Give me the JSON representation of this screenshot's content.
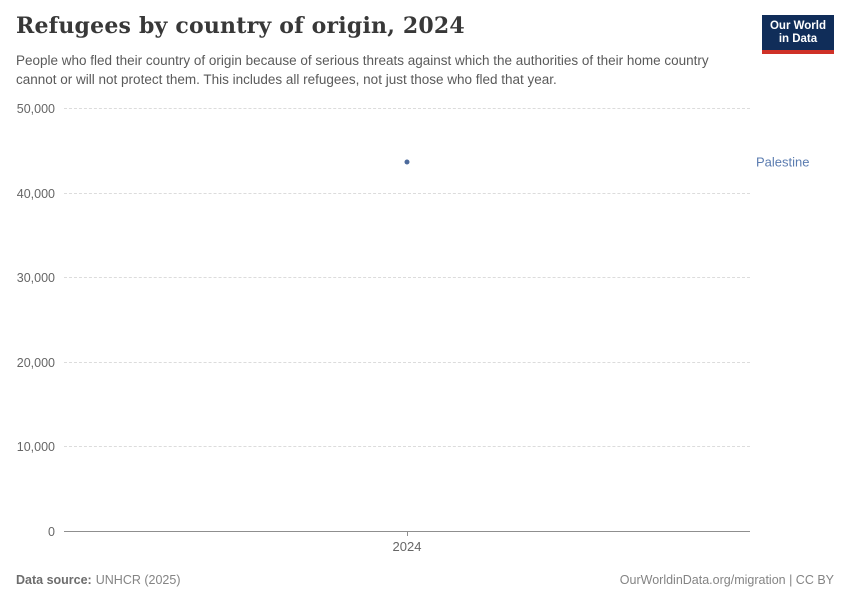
{
  "header": {
    "title": "Refugees by country of origin, 2024",
    "subtitle": "People who fled their country of origin because of serious threats against which the authorities of their home country cannot or will not protect them. This includes all refugees, not just those who fled that year.",
    "logo": {
      "line1": "Our World",
      "line2": "in Data"
    }
  },
  "chart_data": {
    "type": "scatter",
    "title": "Refugees by country of origin, 2024",
    "categories": [
      "2024"
    ],
    "series": [
      {
        "name": "Palestine",
        "values": [
          43700
        ]
      }
    ],
    "xlabel": "",
    "ylabel": "",
    "ylim": [
      0,
      50000
    ],
    "yticks": [
      0,
      10000,
      20000,
      30000,
      40000,
      50000
    ],
    "ytick_labels": [
      "0",
      "10,000",
      "20,000",
      "30,000",
      "40,000",
      "50,000"
    ],
    "grid": "horizontal-dashed",
    "legend_position": "right-of-point",
    "series_color": "#4C6A9C",
    "label_color": "#5B7CB0"
  },
  "footer": {
    "source_label": "Data source:",
    "source_value": "UNHCR (2025)",
    "rights": "OurWorldinData.org/migration | CC BY"
  },
  "colors": {
    "logo_navy": "#102D59",
    "logo_red": "#CF3127",
    "accent_blue": "#4C6A9C",
    "gridline": "#DCDCDC",
    "axis_text": "#666666"
  }
}
